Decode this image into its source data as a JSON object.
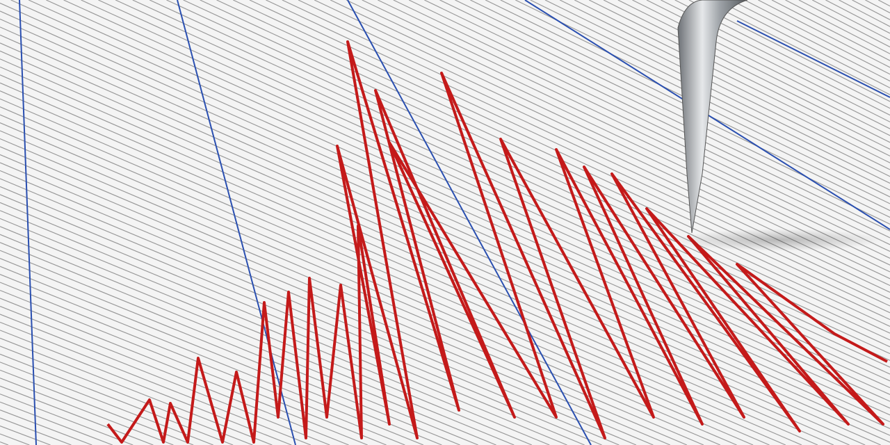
{
  "scene": {
    "subject": "seismograph",
    "colors": {
      "paper": "#f4f4f4",
      "grid_line": "#9a9a9a",
      "blue_line": "#2a4fb0",
      "trace": "#c41a1a",
      "needle": "#b8bcc0"
    }
  }
}
